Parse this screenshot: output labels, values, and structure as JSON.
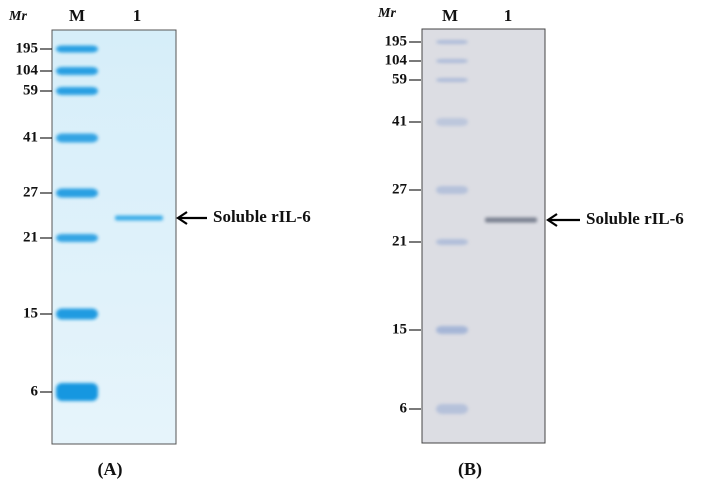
{
  "panels": [
    {
      "mr_label": "Mr",
      "lanes": [
        "M",
        "1"
      ],
      "markers": [
        "195",
        "104",
        "59",
        "41",
        "27",
        "21",
        "15",
        "6"
      ],
      "annotation": "Soluble rIL-6",
      "label": "(A)"
    },
    {
      "mr_label": "Mr",
      "lanes": [
        "M",
        "1"
      ],
      "markers": [
        "195",
        "104",
        "59",
        "41",
        "27",
        "21",
        "15",
        "6"
      ],
      "annotation": "Soluble rIL-6",
      "label": "(B)"
    }
  ]
}
